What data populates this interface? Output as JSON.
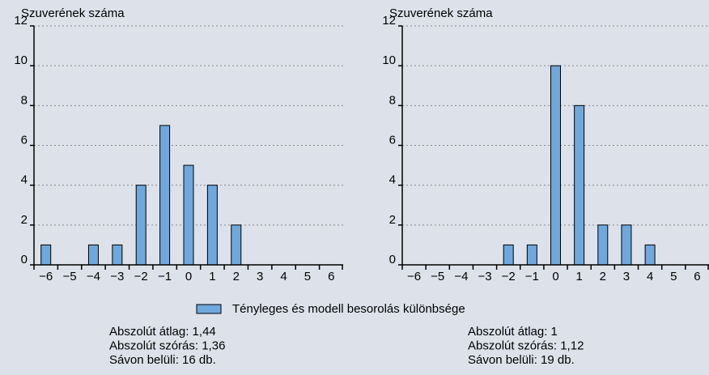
{
  "legend": "Tényleges és modell besorolás különbsége",
  "chart_data": [
    {
      "type": "bar",
      "y_label": "Szuverének száma",
      "categories": [
        "−6",
        "−5",
        "−4",
        "−3",
        "−2",
        "−1",
        "0",
        "1",
        "2",
        "3",
        "4",
        "5",
        "6"
      ],
      "values": [
        1,
        0,
        1,
        1,
        4,
        7,
        5,
        4,
        2,
        0,
        0,
        0,
        0
      ],
      "color": "#6fa8dc",
      "ylim": [
        0,
        12
      ],
      "yticks": [
        0,
        2,
        4,
        6,
        8,
        10,
        12
      ],
      "grid": true,
      "stats": [
        "Abszolút átlag: 1,44",
        "Abszolút szórás: 1,36",
        "Sávon belüli: 16 db."
      ]
    },
    {
      "type": "bar",
      "y_label": "Szuverének száma",
      "categories": [
        "−6",
        "−5",
        "−4",
        "−3",
        "−2",
        "−1",
        "0",
        "1",
        "2",
        "3",
        "4",
        "5",
        "6"
      ],
      "values": [
        0,
        0,
        0,
        0,
        1,
        1,
        10,
        8,
        2,
        2,
        1,
        0,
        0
      ],
      "color": "#6fa8dc",
      "ylim": [
        0,
        12
      ],
      "yticks": [
        0,
        2,
        4,
        6,
        8,
        10,
        12
      ],
      "grid": true,
      "stats": [
        "Abszolút átlag: 1",
        "Abszolút szórás: 1,12",
        "Sávon belüli: 19 db."
      ]
    }
  ]
}
